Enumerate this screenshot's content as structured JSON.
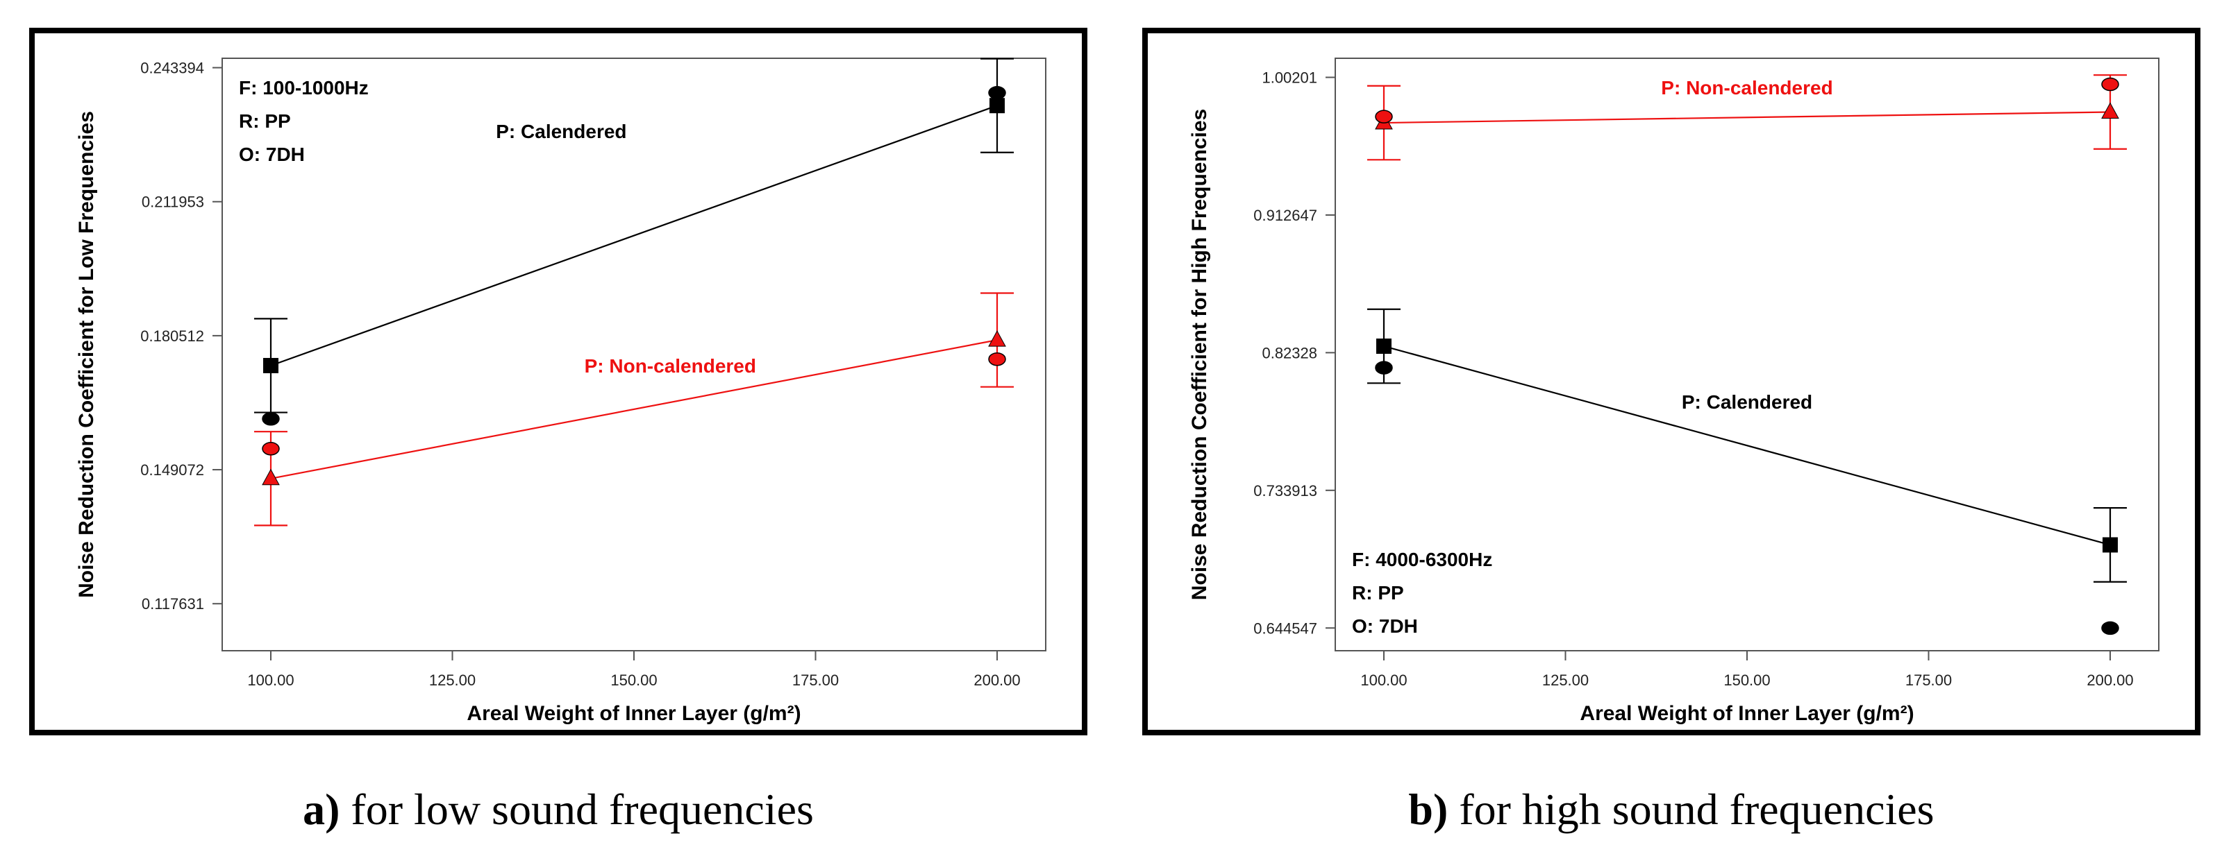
{
  "colors": {
    "calendered": "#000000",
    "non_calendered": "#ee1111",
    "axis": "#555555",
    "background": "#ffffff"
  },
  "captions": [
    {
      "letter": "a)",
      "text": "for low sound frequencies"
    },
    {
      "letter": "b)",
      "text": "for high sound frequencies"
    }
  ],
  "chart_data": [
    {
      "type": "line",
      "xlabel": "Areal Weight of Inner Layer (g/m²)",
      "ylabel": "Noise Reduction Coefficient for Low Frequencies",
      "x_ticks": [
        "100.00",
        "125.00",
        "150.00",
        "175.00",
        "200.00"
      ],
      "y_ticks": [
        "0.117631",
        "0.149072",
        "0.180512",
        "0.211953",
        "0.243394"
      ],
      "xlim": [
        100,
        200
      ],
      "ylim": [
        0.1066,
        0.2456
      ],
      "legend_box": [
        "F: 100-1000Hz",
        "R: PP",
        "O: 7DH"
      ],
      "legend_placement": "top-left",
      "series": [
        {
          "name": "P: Calendered",
          "color": "#000000",
          "x": [
            100,
            200
          ],
          "y": [
            0.1735,
            0.2345
          ],
          "error_low": [
            0.1625,
            0.2235
          ],
          "error_high": [
            0.1845,
            0.2455
          ],
          "observed": [
            0.161,
            0.2375
          ],
          "label_at": [
            140,
            0.2285
          ]
        },
        {
          "name": "P: Non-calendered",
          "color": "#ee1111",
          "x": [
            100,
            200
          ],
          "y": [
            0.147,
            0.1795
          ],
          "error_low": [
            0.136,
            0.1685
          ],
          "error_high": [
            0.158,
            0.1905
          ],
          "observed": [
            0.154,
            0.175
          ],
          "label_at": [
            155,
            0.1735
          ]
        }
      ]
    },
    {
      "type": "line",
      "xlabel": "Areal Weight of Inner Layer (g/m²)",
      "ylabel": "Noise Reduction Coefficient for High Frequencies",
      "x_ticks": [
        "100.00",
        "125.00",
        "150.00",
        "175.00",
        "200.00"
      ],
      "y_ticks": [
        "0.644547",
        "0.733913",
        "0.82328",
        "0.912647",
        "1.00201"
      ],
      "xlim": [
        100,
        200
      ],
      "ylim": [
        0.6298,
        1.0144
      ],
      "legend_box": [
        "F: 4000-6300Hz",
        "R: PP",
        "O: 7DH"
      ],
      "legend_placement": "bottom-left",
      "series": [
        {
          "name": "P: Calendered",
          "color": "#000000",
          "x": [
            100,
            200
          ],
          "y": [
            0.8275,
            0.6985
          ],
          "error_low": [
            0.8035,
            0.6745
          ],
          "error_high": [
            0.8515,
            0.7225
          ],
          "observed": [
            0.8135,
            0.6445
          ],
          "label_at": [
            150,
            0.7915
          ]
        },
        {
          "name": "P: Non-calendered",
          "color": "#ee1111",
          "x": [
            100,
            200
          ],
          "y": [
            0.9725,
            0.9795
          ],
          "error_low": [
            0.9485,
            0.9555
          ],
          "error_high": [
            0.9965,
            1.0035
          ],
          "observed": [
            0.9765,
            0.9975
          ],
          "label_at": [
            150,
            0.9955
          ]
        }
      ]
    }
  ]
}
